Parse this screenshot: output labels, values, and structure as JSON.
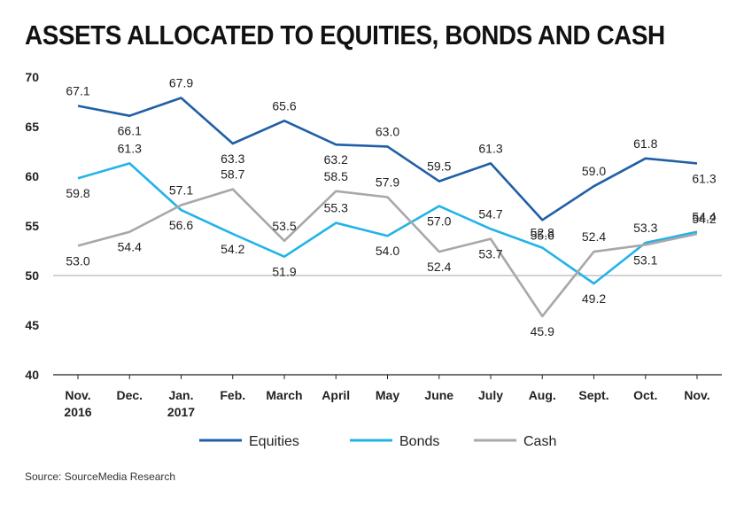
{
  "title": "ASSETS ALLOCATED TO EQUITIES, BONDS AND CASH",
  "source": "Source: SourceMedia Research",
  "chart_data": {
    "type": "line",
    "title": "ASSETS ALLOCATED TO EQUITIES, BONDS AND CASH",
    "xlabel": "",
    "ylabel": "",
    "categories": [
      [
        "Nov.",
        "2016"
      ],
      [
        "Dec."
      ],
      [
        "Jan.",
        "2017"
      ],
      [
        "Feb."
      ],
      [
        "March"
      ],
      [
        "April"
      ],
      [
        "May"
      ],
      [
        "June"
      ],
      [
        "July"
      ],
      [
        "Aug."
      ],
      [
        "Sept."
      ],
      [
        "Oct."
      ],
      [
        "Nov."
      ]
    ],
    "ylim": [
      40,
      70
    ],
    "yticks": [
      40,
      45,
      50,
      55,
      60,
      65,
      70
    ],
    "grid": false,
    "reference_line": 50,
    "legend_position": "bottom",
    "series": [
      {
        "name": "Equities",
        "color": "#1f5fa6",
        "values": [
          67.1,
          66.1,
          67.9,
          63.3,
          65.6,
          63.2,
          63.0,
          59.5,
          61.3,
          55.6,
          59.0,
          61.8,
          61.3
        ]
      },
      {
        "name": "Bonds",
        "color": "#22b3e8",
        "values": [
          59.8,
          61.3,
          56.6,
          54.2,
          51.9,
          55.3,
          54.0,
          57.0,
          54.7,
          52.8,
          49.2,
          53.3,
          54.4
        ]
      },
      {
        "name": "Cash",
        "color": "#a8a8a8",
        "values": [
          53.0,
          54.4,
          57.1,
          58.7,
          53.5,
          58.5,
          57.9,
          52.4,
          53.7,
          45.9,
          52.4,
          53.1,
          54.2
        ]
      }
    ]
  }
}
